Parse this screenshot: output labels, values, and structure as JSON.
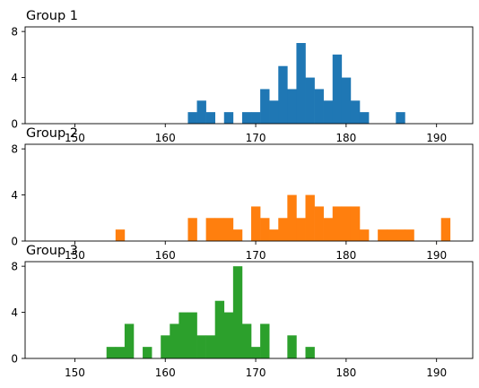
{
  "chart_data": [
    {
      "type": "histogram",
      "title": "Group 1",
      "color": "#1f77b4",
      "bin_width": 1,
      "xlim": [
        144.5,
        194
      ],
      "ylim": [
        0,
        8.4
      ],
      "xticks": [
        150,
        160,
        170,
        180,
        190
      ],
      "yticks": [
        0,
        4,
        8
      ],
      "bars": [
        {
          "x": 162.5,
          "count": 1
        },
        {
          "x": 163.5,
          "count": 2
        },
        {
          "x": 164.5,
          "count": 1
        },
        {
          "x": 166.5,
          "count": 1
        },
        {
          "x": 168.5,
          "count": 1
        },
        {
          "x": 169.5,
          "count": 1
        },
        {
          "x": 170.5,
          "count": 3
        },
        {
          "x": 171.5,
          "count": 2
        },
        {
          "x": 172.5,
          "count": 5
        },
        {
          "x": 173.5,
          "count": 3
        },
        {
          "x": 174.5,
          "count": 7
        },
        {
          "x": 175.5,
          "count": 4
        },
        {
          "x": 176.5,
          "count": 3
        },
        {
          "x": 177.5,
          "count": 2
        },
        {
          "x": 178.5,
          "count": 6
        },
        {
          "x": 179.5,
          "count": 4
        },
        {
          "x": 180.5,
          "count": 2
        },
        {
          "x": 181.5,
          "count": 1
        },
        {
          "x": 185.5,
          "count": 1
        }
      ]
    },
    {
      "type": "histogram",
      "title": "Group 2",
      "color": "#ff7f0e",
      "bin_width": 1,
      "xlim": [
        144.5,
        194
      ],
      "ylim": [
        0,
        8.4
      ],
      "xticks": [
        150,
        160,
        170,
        180,
        190
      ],
      "yticks": [
        0,
        4,
        8
      ],
      "bars": [
        {
          "x": 154.5,
          "count": 1
        },
        {
          "x": 162.5,
          "count": 2
        },
        {
          "x": 164.5,
          "count": 2
        },
        {
          "x": 165.5,
          "count": 2
        },
        {
          "x": 166.5,
          "count": 2
        },
        {
          "x": 167.5,
          "count": 1
        },
        {
          "x": 169.5,
          "count": 3
        },
        {
          "x": 170.5,
          "count": 2
        },
        {
          "x": 171.5,
          "count": 1
        },
        {
          "x": 172.5,
          "count": 2
        },
        {
          "x": 173.5,
          "count": 4
        },
        {
          "x": 174.5,
          "count": 2
        },
        {
          "x": 175.5,
          "count": 4
        },
        {
          "x": 176.5,
          "count": 3
        },
        {
          "x": 177.5,
          "count": 2
        },
        {
          "x": 178.5,
          "count": 3
        },
        {
          "x": 179.5,
          "count": 3
        },
        {
          "x": 180.5,
          "count": 3
        },
        {
          "x": 181.5,
          "count": 1
        },
        {
          "x": 183.5,
          "count": 1
        },
        {
          "x": 184.5,
          "count": 1
        },
        {
          "x": 185.5,
          "count": 1
        },
        {
          "x": 186.5,
          "count": 1
        },
        {
          "x": 190.5,
          "count": 2
        }
      ]
    },
    {
      "type": "histogram",
      "title": "Group 3",
      "color": "#2ca02c",
      "bin_width": 1,
      "xlim": [
        144.5,
        194
      ],
      "ylim": [
        0,
        8.4
      ],
      "xticks": [
        150,
        160,
        170,
        180,
        190
      ],
      "yticks": [
        0,
        4,
        8
      ],
      "bars": [
        {
          "x": 153.5,
          "count": 1
        },
        {
          "x": 154.5,
          "count": 1
        },
        {
          "x": 155.5,
          "count": 3
        },
        {
          "x": 157.5,
          "count": 1
        },
        {
          "x": 159.5,
          "count": 2
        },
        {
          "x": 160.5,
          "count": 3
        },
        {
          "x": 161.5,
          "count": 4
        },
        {
          "x": 162.5,
          "count": 4
        },
        {
          "x": 163.5,
          "count": 2
        },
        {
          "x": 164.5,
          "count": 2
        },
        {
          "x": 165.5,
          "count": 5
        },
        {
          "x": 166.5,
          "count": 4
        },
        {
          "x": 167.5,
          "count": 8
        },
        {
          "x": 168.5,
          "count": 3
        },
        {
          "x": 169.5,
          "count": 1
        },
        {
          "x": 170.5,
          "count": 3
        },
        {
          "x": 173.5,
          "count": 2
        },
        {
          "x": 175.5,
          "count": 1
        }
      ]
    }
  ]
}
